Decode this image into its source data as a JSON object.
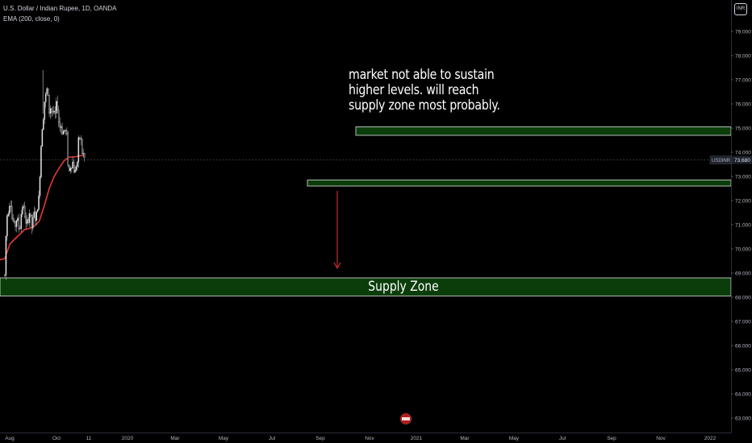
{
  "header": {
    "symbol_line": "U.S. Dollar / Indian Rupee, 1D, OANDA",
    "indicator_line": "EMA (200, close, 0)",
    "currency_badge": "INR"
  },
  "annotation": {
    "lines": [
      "market not able to sustain",
      "higher levels. will reach",
      "supply zone most probably."
    ]
  },
  "zones": [
    {
      "name": "Supply Zone",
      "label": "Supply Zone",
      "top": 68.8,
      "bottom": 68.05,
      "start": "Aug 2019",
      "color": "#0b3d0b"
    },
    {
      "name": "resistance",
      "label": "",
      "top": 75.05,
      "bottom": 74.7,
      "start": "Oct 2020",
      "color": "#0b3d0b"
    },
    {
      "name": "support",
      "label": "",
      "top": 72.85,
      "bottom": 72.6,
      "start": "Aug 2020",
      "color": "#0b3d0b"
    }
  ],
  "arrow": {
    "from_price": 72.4,
    "to_price": 69.2,
    "color": "#e53935"
  },
  "chart_data": {
    "type": "candlestick",
    "symbol": "USDINR",
    "current_price": "73.680",
    "ylim": [
      62.75,
      80.2
    ],
    "y_ticks": [
      "63.000",
      "64.000",
      "65.000",
      "66.000",
      "67.000",
      "68.000",
      "69.000",
      "70.000",
      "71.000",
      "72.000",
      "73.000",
      "74.000",
      "75.000",
      "76.000",
      "77.000",
      "78.000",
      "79.000"
    ],
    "x_ticks": [
      "Aug",
      "Oct",
      "11",
      "2020",
      "Mar",
      "May",
      "Jul",
      "Sep",
      "Nov",
      "2021",
      "Mar",
      "May",
      "Jul",
      "Sep",
      "Nov",
      "2022"
    ],
    "price_path": [
      [
        "2019-08-01",
        68.9
      ],
      [
        "2019-08-08",
        70.5
      ],
      [
        "2019-08-15",
        71.4
      ],
      [
        "2019-08-22",
        71.6
      ],
      [
        "2019-08-29",
        71.9
      ],
      [
        "2019-09-05",
        72.0
      ],
      [
        "2019-09-12",
        71.3
      ],
      [
        "2019-09-19",
        71.2
      ],
      [
        "2019-09-26",
        71.0
      ],
      [
        "2019-10-03",
        70.9
      ],
      [
        "2019-10-10",
        71.2
      ],
      [
        "2019-10-17",
        71.3
      ],
      [
        "2019-10-24",
        70.9
      ],
      [
        "2019-10-31",
        70.8
      ],
      [
        "2019-11-07",
        71.1
      ],
      [
        "2019-11-14",
        71.9
      ],
      [
        "2019-11-21",
        71.7
      ],
      [
        "2019-11-28",
        71.6
      ],
      [
        "2019-12-05",
        71.2
      ],
      [
        "2019-12-12",
        70.8
      ],
      [
        "2019-12-19",
        71.2
      ],
      [
        "2019-12-26",
        71.3
      ],
      [
        "2020-01-02",
        71.6
      ],
      [
        "2020-01-09",
        71.1
      ],
      [
        "2020-01-16",
        70.8
      ],
      [
        "2020-01-23",
        71.3
      ],
      [
        "2020-01-30",
        71.5
      ],
      [
        "2020-02-06",
        71.2
      ],
      [
        "2020-02-13",
        71.4
      ],
      [
        "2020-02-20",
        71.8
      ],
      [
        "2020-02-27",
        72.1
      ],
      [
        "2020-03-05",
        73.2
      ],
      [
        "2020-03-12",
        74.3
      ],
      [
        "2020-03-19",
        75.1
      ],
      [
        "2020-03-26",
        75.5
      ],
      [
        "2020-04-02",
        76.1
      ],
      [
        "2020-04-09",
        76.3
      ],
      [
        "2020-04-16",
        76.6
      ],
      [
        "2020-04-23",
        76.4
      ],
      [
        "2020-04-30",
        75.6
      ],
      [
        "2020-05-07",
        75.9
      ],
      [
        "2020-05-14",
        75.7
      ],
      [
        "2020-05-21",
        75.7
      ],
      [
        "2020-05-28",
        75.6
      ],
      [
        "2020-06-04",
        75.4
      ],
      [
        "2020-06-11",
        75.8
      ],
      [
        "2020-06-18",
        76.1
      ],
      [
        "2020-06-25",
        75.6
      ],
      [
        "2020-07-02",
        74.9
      ],
      [
        "2020-07-09",
        75.2
      ],
      [
        "2020-07-16",
        75.0
      ],
      [
        "2020-07-23",
        74.8
      ],
      [
        "2020-07-30",
        74.9
      ],
      [
        "2020-08-06",
        74.9
      ],
      [
        "2020-08-13",
        74.8
      ],
      [
        "2020-08-20",
        74.6
      ],
      [
        "2020-08-27",
        73.2
      ],
      [
        "2020-09-03",
        73.2
      ],
      [
        "2020-09-10",
        73.5
      ],
      [
        "2020-09-17",
        73.5
      ],
      [
        "2020-09-24",
        73.6
      ],
      [
        "2020-10-01",
        73.2
      ],
      [
        "2020-10-08",
        73.2
      ],
      [
        "2020-10-15",
        73.5
      ],
      [
        "2020-10-22",
        73.6
      ],
      [
        "2020-10-29",
        74.4
      ],
      [
        "2020-11-05",
        74.6
      ],
      [
        "2020-11-12",
        74.5
      ],
      [
        "2020-11-19",
        74.0
      ],
      [
        "2020-11-26",
        73.9
      ],
      [
        "2020-12-03",
        73.8
      ],
      [
        "2020-12-07",
        73.68
      ]
    ],
    "series": [
      {
        "name": "EMA (200, close, 0)",
        "color": "#e53935",
        "points": [
          [
            "2019-08-01",
            69.6
          ],
          [
            "2019-09-01",
            70.2
          ],
          [
            "2019-10-01",
            70.4
          ],
          [
            "2019-11-01",
            70.6
          ],
          [
            "2019-12-01",
            70.8
          ],
          [
            "2020-01-01",
            70.85
          ],
          [
            "2020-02-01",
            70.95
          ],
          [
            "2020-03-01",
            71.15
          ],
          [
            "2020-04-01",
            71.8
          ],
          [
            "2020-05-01",
            72.5
          ],
          [
            "2020-06-01",
            73.0
          ],
          [
            "2020-07-01",
            73.35
          ],
          [
            "2020-08-01",
            73.65
          ],
          [
            "2020-09-01",
            73.8
          ],
          [
            "2020-10-01",
            73.8
          ],
          [
            "2020-11-01",
            73.85
          ],
          [
            "2020-12-07",
            73.87
          ]
        ]
      }
    ],
    "candle_colors": {
      "up": "#26a69a",
      "down": "#ef5350"
    }
  }
}
